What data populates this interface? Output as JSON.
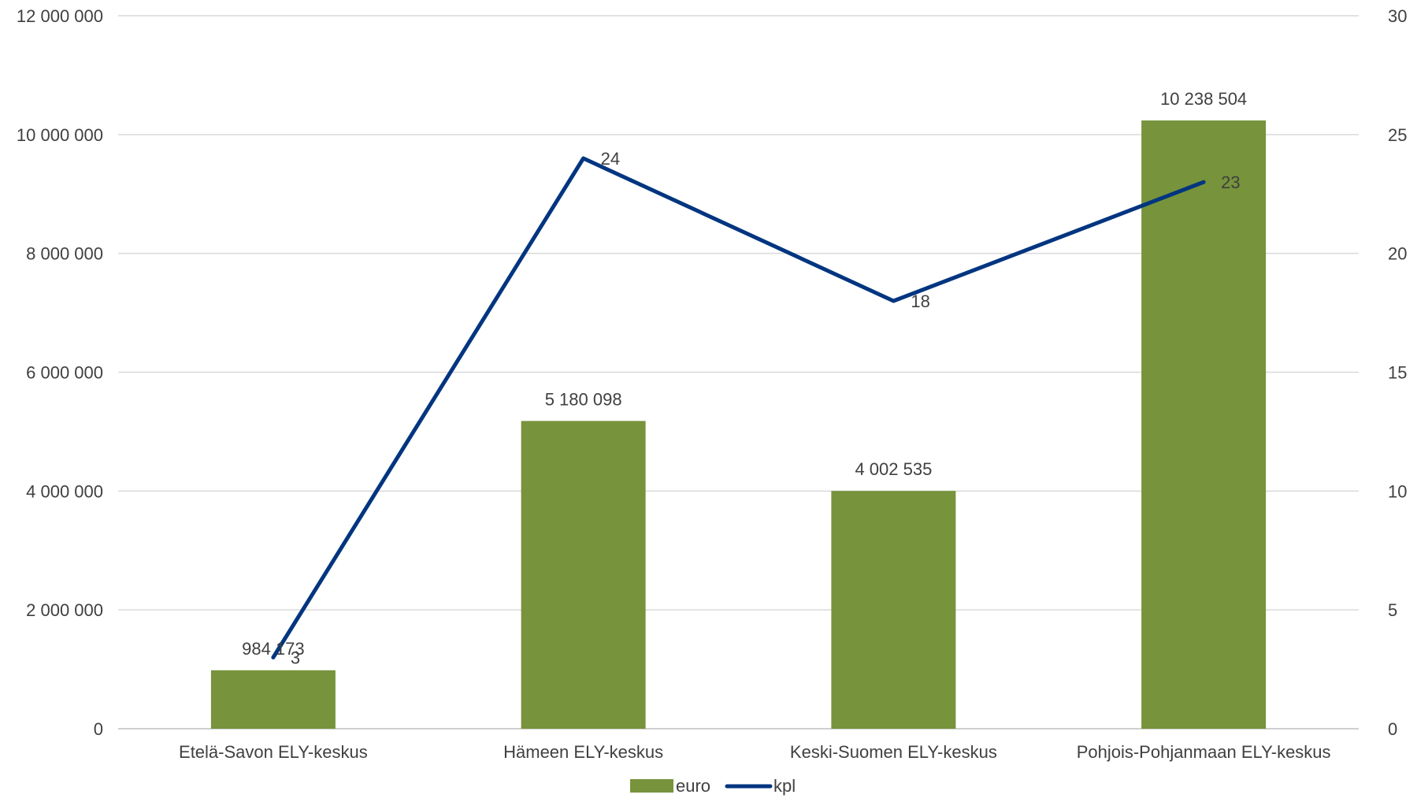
{
  "chart_data": {
    "type": "bar",
    "categories": [
      "Etelä-Savon ELY-keskus",
      "Hämeen ELY-keskus",
      "Keski-Suomen ELY-keskus",
      "Pohjois-Pohjanmaan ELY-keskus"
    ],
    "series": [
      {
        "name": "euro",
        "type": "bar",
        "axis": "left",
        "color": "#77933C",
        "values": [
          984173,
          5180098,
          4002535,
          10238504
        ],
        "labels": [
          "984 173",
          "5 180 098",
          "4 002 535",
          "10 238 504"
        ]
      },
      {
        "name": "kpl",
        "type": "line",
        "axis": "right",
        "color": "#003580",
        "values": [
          3,
          24,
          18,
          23
        ],
        "labels": [
          "3",
          "24",
          "18",
          "23"
        ]
      }
    ],
    "y_left": {
      "min": 0,
      "max": 12000000,
      "ticks": [
        0,
        2000000,
        4000000,
        6000000,
        8000000,
        10000000,
        12000000
      ],
      "tick_labels": [
        "0",
        "2 000 000",
        "4 000 000",
        "6 000 000",
        "8 000 000",
        "10 000 000",
        "12 000 000"
      ]
    },
    "y_right": {
      "min": 0,
      "max": 30,
      "ticks": [
        0,
        5,
        10,
        15,
        20,
        25,
        30
      ],
      "tick_labels": [
        "0",
        "5",
        "10",
        "15",
        "20",
        "25",
        "30"
      ]
    },
    "title": "",
    "xlabel": "",
    "ylabel": "",
    "grid": true,
    "legend": {
      "position": "bottom",
      "entries": [
        "euro",
        "kpl"
      ]
    }
  }
}
